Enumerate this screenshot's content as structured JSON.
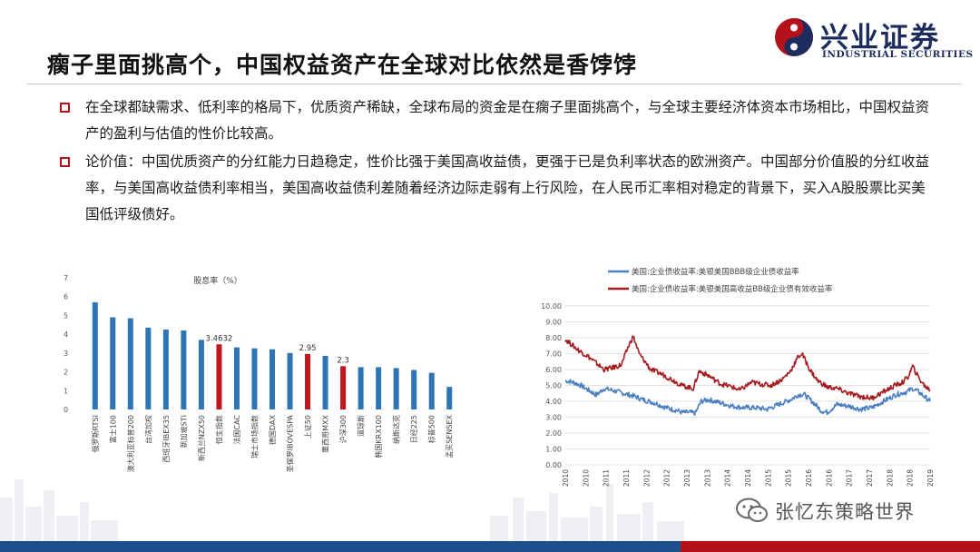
{
  "slide": {
    "title": "瘸子里面挑高个，中国权益资产在全球对比依然是香饽饽",
    "logo": {
      "name": "兴业证券",
      "name_en": "INDUSTRIAL SECURITIES"
    },
    "bullets": [
      "在全球都缺需求、低利率的格局下，优质资产稀缺，全球布局的资金是在瘸子里面挑高个，与全球主要经济体资本市场相比，中国权益资产的盈利与估值的性价比较高。",
      "论价值：中国优质资产的分红能力日趋稳定，性价比强于美国高收益债，更强于已是负利率状态的欧洲资产。中国部分价值股的分红收益率，与美国高收益债利率相当，美国高收益债利差随着经济边际走弱有上行风险，在人民币汇率相对稳定的背景下，买入A股股票比买美国低评级债好。"
    ],
    "watermark": "张忆东策略世界",
    "colors": {
      "accent_red": "#b5111b",
      "navy": "#1c2c5c",
      "bar_blue": "#2e75b6",
      "bar_red": "#c0171d"
    }
  },
  "chart_data": [
    {
      "type": "bar",
      "title": "股息率（%）",
      "categories": [
        "俄罗斯RTSI",
        "富士100",
        "澳大利亚标普200",
        "台湾加权",
        "西班牙IBEX35",
        "新加坡STI",
        "新西兰NZX50",
        "恒生指数",
        "法国CAC",
        "瑞士市场指数",
        "德国DAX",
        "圣保罗IBOVESPA",
        "上证50",
        "墨西哥MXX",
        "沪深300",
        "道琼斯",
        "韩国KRX100",
        "纳斯达克",
        "日经225",
        "标普500",
        "孟买SENSEX"
      ],
      "values": [
        5.7,
        4.9,
        4.85,
        4.35,
        4.25,
        4.2,
        3.7,
        3.4632,
        3.3,
        3.25,
        3.2,
        3.0,
        2.95,
        2.85,
        2.3,
        2.25,
        2.25,
        2.2,
        2.1,
        1.95,
        1.2
      ],
      "highlight_indices": [
        7,
        12,
        14
      ],
      "data_labels": {
        "7": "3.4632",
        "12": "2.95",
        "14": "2.3"
      },
      "ylim": [
        0,
        7
      ],
      "yticks": [
        "0",
        "1",
        "2",
        "3",
        "4",
        "5",
        "6",
        "7"
      ],
      "colors": {
        "default": "#2e75b6",
        "highlight": "#c0171d"
      }
    },
    {
      "type": "line",
      "title": "",
      "series": [
        {
          "name": "美国:企业债收益率:美银美国BBB级企业债收益率",
          "color": "#4a7fc1",
          "points": [
            [
              2010.0,
              5.3
            ],
            [
              2010.2,
              5.2
            ],
            [
              2010.4,
              5.0
            ],
            [
              2010.6,
              4.7
            ],
            [
              2010.8,
              4.4
            ],
            [
              2011.0,
              4.8
            ],
            [
              2011.2,
              4.7
            ],
            [
              2011.5,
              4.5
            ],
            [
              2011.8,
              4.3
            ],
            [
              2012.0,
              4.1
            ],
            [
              2012.3,
              3.9
            ],
            [
              2012.6,
              3.6
            ],
            [
              2012.9,
              3.4
            ],
            [
              2013.0,
              3.3
            ],
            [
              2013.2,
              3.3
            ],
            [
              2013.35,
              3.25
            ],
            [
              2013.5,
              4.0
            ],
            [
              2013.7,
              4.1
            ],
            [
              2014.0,
              3.9
            ],
            [
              2014.3,
              3.7
            ],
            [
              2014.6,
              3.6
            ],
            [
              2014.9,
              3.6
            ],
            [
              2015.2,
              3.5
            ],
            [
              2015.5,
              3.8
            ],
            [
              2015.8,
              4.1
            ],
            [
              2016.0,
              4.4
            ],
            [
              2016.15,
              4.45
            ],
            [
              2016.4,
              3.9
            ],
            [
              2016.6,
              3.4
            ],
            [
              2016.75,
              3.3
            ],
            [
              2017.0,
              3.8
            ],
            [
              2017.3,
              3.7
            ],
            [
              2017.6,
              3.5
            ],
            [
              2017.9,
              3.6
            ],
            [
              2018.2,
              4.0
            ],
            [
              2018.5,
              4.4
            ],
            [
              2018.8,
              4.6
            ],
            [
              2018.95,
              4.8
            ],
            [
              2019.1,
              4.6
            ],
            [
              2019.3,
              4.2
            ],
            [
              2019.4,
              4.0
            ]
          ]
        },
        {
          "name": "美国:企业债收益率:美银美国高收益BB级企业债有效收益率",
          "color": "#a61b1f",
          "points": [
            [
              2010.0,
              7.9
            ],
            [
              2010.15,
              7.6
            ],
            [
              2010.35,
              7.2
            ],
            [
              2010.6,
              6.8
            ],
            [
              2010.85,
              6.3
            ],
            [
              2011.0,
              6.0
            ],
            [
              2011.2,
              6.1
            ],
            [
              2011.45,
              6.3
            ],
            [
              2011.6,
              7.3
            ],
            [
              2011.75,
              8.1
            ],
            [
              2011.9,
              7.0
            ],
            [
              2012.2,
              6.0
            ],
            [
              2012.5,
              5.7
            ],
            [
              2012.8,
              5.3
            ],
            [
              2013.0,
              5.0
            ],
            [
              2013.3,
              4.8
            ],
            [
              2013.45,
              5.9
            ],
            [
              2013.7,
              5.6
            ],
            [
              2014.0,
              5.1
            ],
            [
              2014.3,
              4.9
            ],
            [
              2014.5,
              4.7
            ],
            [
              2014.8,
              5.2
            ],
            [
              2015.0,
              5.1
            ],
            [
              2015.3,
              5.0
            ],
            [
              2015.6,
              5.4
            ],
            [
              2015.8,
              5.9
            ],
            [
              2016.0,
              6.8
            ],
            [
              2016.1,
              7.0
            ],
            [
              2016.3,
              6.0
            ],
            [
              2016.5,
              5.3
            ],
            [
              2016.75,
              4.9
            ],
            [
              2017.0,
              4.8
            ],
            [
              2017.3,
              4.5
            ],
            [
              2017.6,
              4.3
            ],
            [
              2017.9,
              4.2
            ],
            [
              2018.2,
              4.6
            ],
            [
              2018.5,
              5.0
            ],
            [
              2018.7,
              5.2
            ],
            [
              2018.85,
              5.6
            ],
            [
              2018.95,
              6.2
            ],
            [
              2019.1,
              5.5
            ],
            [
              2019.25,
              5.0
            ],
            [
              2019.4,
              4.7
            ]
          ]
        }
      ],
      "xlim": [
        2010,
        2019.4
      ],
      "ylim": [
        0,
        10
      ],
      "xticks": [
        "2010",
        "2010",
        "2011",
        "2011",
        "2012",
        "2012",
        "2013",
        "2013",
        "2014",
        "2014",
        "2015",
        "2015",
        "2016",
        "2016",
        "2017",
        "2017",
        "2018",
        "2018",
        "2019"
      ],
      "yticks": [
        "0.00",
        "1.00",
        "2.00",
        "3.00",
        "4.00",
        "5.00",
        "6.00",
        "7.00",
        "8.00",
        "9.00",
        "10.00"
      ],
      "grid": true,
      "legend_position": "top"
    }
  ]
}
